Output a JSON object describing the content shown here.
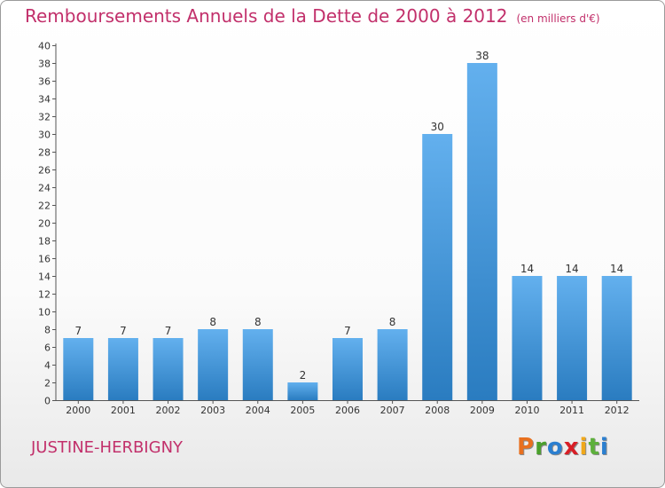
{
  "header": {
    "title": "Remboursements Annuels de la Dette de 2000 à 2012",
    "unit": "(en milliers d'€)"
  },
  "footer": {
    "commune": "JUSTINE-HERBIGNY",
    "logo_letters": [
      "P",
      "r",
      "o",
      "x",
      "i",
      "t",
      "i"
    ],
    "logo_colors": [
      "#e8701f",
      "#4aa02c",
      "#2b7fd0",
      "#d81f26",
      "#f0a81b",
      "#5db03c",
      "#2b7fd0"
    ]
  },
  "colors": {
    "bar_top": "#63b0ee",
    "bar_bottom": "#2a7cc0",
    "accent": "#c2306b"
  },
  "chart_data": {
    "type": "bar",
    "title": "Remboursements Annuels de la Dette de 2000 à 2012",
    "subtitle": "(en milliers d'€)",
    "categories": [
      "2000",
      "2001",
      "2002",
      "2003",
      "2004",
      "2005",
      "2006",
      "2007",
      "2008",
      "2009",
      "2010",
      "2011",
      "2012"
    ],
    "values": [
      7,
      7,
      7,
      8,
      8,
      2,
      7,
      8,
      30,
      38,
      14,
      14,
      14
    ],
    "yticks": [
      0,
      2,
      4,
      6,
      8,
      10,
      12,
      14,
      16,
      18,
      20,
      22,
      24,
      26,
      28,
      30,
      32,
      34,
      36,
      38,
      40
    ],
    "ylim": [
      0,
      40
    ],
    "grid": false,
    "legend": "none"
  }
}
